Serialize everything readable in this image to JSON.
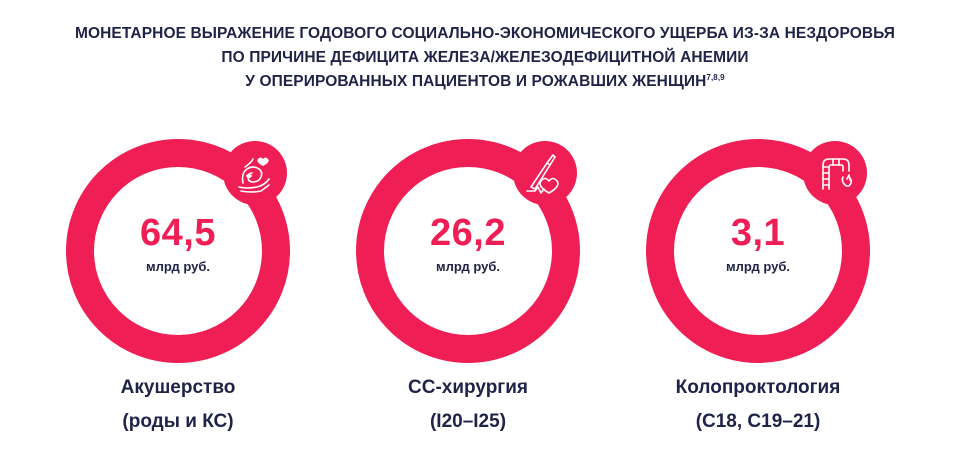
{
  "title": {
    "line1": "МОНЕТАРНОЕ ВЫРАЖЕНИЕ ГОДОВОГО СОЦИАЛЬНО-ЭКОНОМИЧЕСКОГО УЩЕРБА ИЗ-ЗА НЕЗДОРОВЬЯ",
    "line2": "ПО ПРИЧИНЕ ДЕФИЦИТА ЖЕЛЕЗА/ЖЕЛЕЗОДЕФИЦИТНОЙ АНЕМИИ",
    "line3": "У ОПЕРИРОВАННЫХ ПАЦИЕНТОВ И РОЖАВШИХ ЖЕНЩИН",
    "refs": "7,8,9"
  },
  "colors": {
    "accent": "#ef1f55",
    "text": "#1f2347"
  },
  "cards": [
    {
      "value": "64,5",
      "unit": "млрд руб.",
      "label_line1": "Акушерство",
      "label_line2": "(роды и КС)",
      "icon": "pregnancy-hands-heart-icon"
    },
    {
      "value": "26,2",
      "unit": "млрд руб.",
      "label_line1": "СС-хирургия",
      "label_line2": "(I20–I25)",
      "icon": "scalpel-heart-icon"
    },
    {
      "value": "3,1",
      "unit": "млрд руб.",
      "label_line1": "Колопроктология",
      "label_line2": "(С18, С19–21)",
      "icon": "intestine-icon"
    }
  ]
}
